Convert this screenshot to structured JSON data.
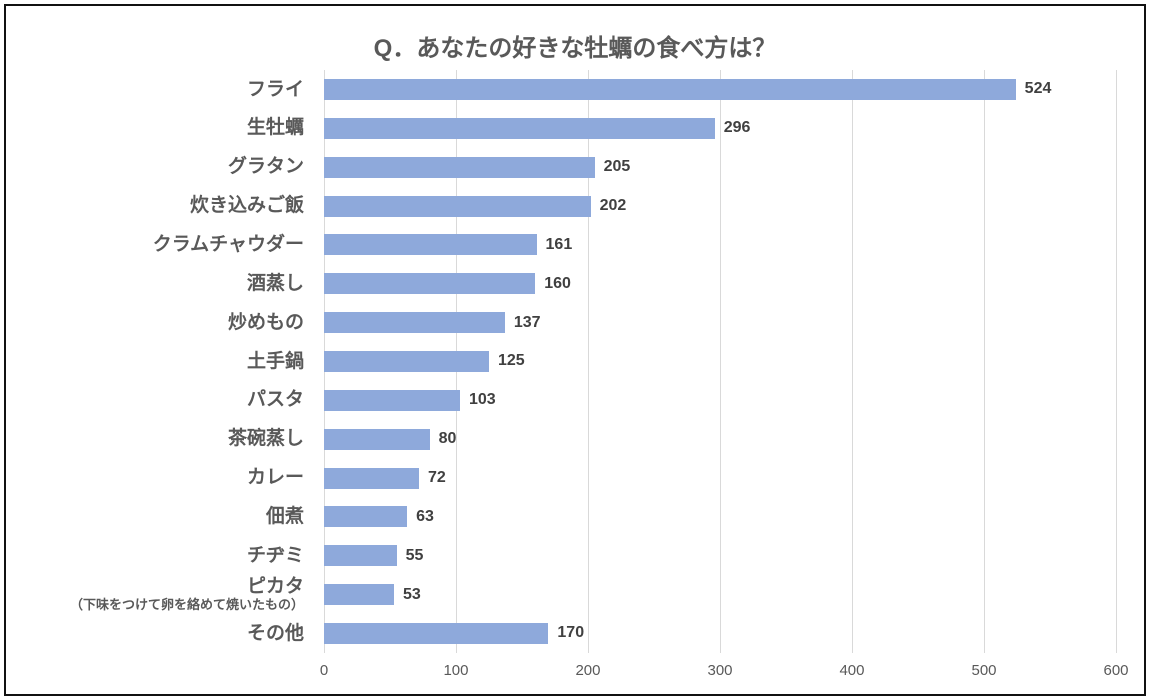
{
  "title": "Q．あなたの好きな牡蠣の食べ方は？",
  "chart_data": {
    "type": "bar",
    "orientation": "horizontal",
    "title": "Q．あなたの好きな牡蠣の食べ方は？",
    "categories": [
      "フライ",
      "生牡蠣",
      "グラタン",
      "炊き込みご飯",
      "クラムチャウダー",
      "酒蒸し",
      "炒めもの",
      "土手鍋",
      "パスタ",
      "茶碗蒸し",
      "カレー",
      "佃煮",
      "チヂミ",
      "ピカタ",
      "その他"
    ],
    "category_sublabels": [
      "",
      "",
      "",
      "",
      "",
      "",
      "",
      "",
      "",
      "",
      "",
      "",
      "",
      "（下味をつけて卵を絡めて焼いたもの）",
      ""
    ],
    "values": [
      524,
      296,
      205,
      202,
      161,
      160,
      137,
      125,
      103,
      80,
      72,
      63,
      55,
      53,
      170
    ],
    "data_labels": [
      524,
      296,
      205,
      202,
      161,
      160,
      137,
      125,
      103,
      80,
      72,
      63,
      55,
      53,
      170
    ],
    "xlabel": "",
    "ylabel": "",
    "xlim": [
      0,
      600
    ],
    "xticks": [
      0,
      100,
      200,
      300,
      400,
      500,
      600
    ],
    "grid": "vertical-only",
    "legend": "none",
    "colors": {
      "bar": "#8ea9db",
      "category_label": "#595959",
      "value_label": "#404040",
      "tick_label": "#595959",
      "gridline": "#d9d9d9",
      "title": "#595959",
      "frame_border": "#111111"
    }
  }
}
